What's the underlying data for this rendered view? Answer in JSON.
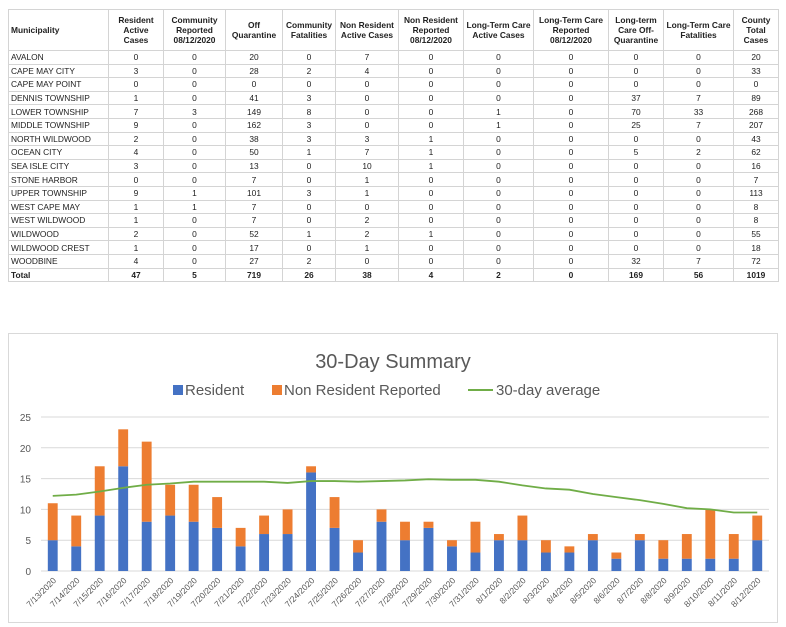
{
  "table": {
    "headers": [
      "Municipality",
      "Resident Active Cases",
      "Community Reported 08/12/2020",
      "Off Quarantine",
      "Community Fatalities",
      "Non Resident Active Cases",
      "Non Resident Reported 08/12/2020",
      "Long-Term Care Active Cases",
      "Long-Term Care Reported 08/12/2020",
      "Long-term Care Off-Quarantine",
      "Long-Term Care Fatalities",
      "County Total Cases"
    ],
    "rows": [
      [
        "AVALON",
        "0",
        "0",
        "20",
        "0",
        "7",
        "0",
        "0",
        "0",
        "0",
        "0",
        "20"
      ],
      [
        "CAPE MAY CITY",
        "3",
        "0",
        "28",
        "2",
        "4",
        "0",
        "0",
        "0",
        "0",
        "0",
        "33"
      ],
      [
        "CAPE MAY POINT",
        "0",
        "0",
        "0",
        "0",
        "0",
        "0",
        "0",
        "0",
        "0",
        "0",
        "0"
      ],
      [
        "DENNIS TOWNSHIP",
        "1",
        "0",
        "41",
        "3",
        "0",
        "0",
        "0",
        "0",
        "37",
        "7",
        "89"
      ],
      [
        "LOWER TOWNSHIP",
        "7",
        "3",
        "149",
        "8",
        "0",
        "0",
        "1",
        "0",
        "70",
        "33",
        "268"
      ],
      [
        "MIDDLE TOWNSHIP",
        "9",
        "0",
        "162",
        "3",
        "0",
        "0",
        "1",
        "0",
        "25",
        "7",
        "207"
      ],
      [
        "NORTH WILDWOOD",
        "2",
        "0",
        "38",
        "3",
        "3",
        "1",
        "0",
        "0",
        "0",
        "0",
        "43"
      ],
      [
        "OCEAN CITY",
        "4",
        "0",
        "50",
        "1",
        "7",
        "1",
        "0",
        "0",
        "5",
        "2",
        "62"
      ],
      [
        "SEA ISLE CITY",
        "3",
        "0",
        "13",
        "0",
        "10",
        "1",
        "0",
        "0",
        "0",
        "0",
        "16"
      ],
      [
        "STONE HARBOR",
        "0",
        "0",
        "7",
        "0",
        "1",
        "0",
        "0",
        "0",
        "0",
        "0",
        "7"
      ],
      [
        "UPPER TOWNSHIP",
        "9",
        "1",
        "101",
        "3",
        "1",
        "0",
        "0",
        "0",
        "0",
        "0",
        "113"
      ],
      [
        "WEST CAPE MAY",
        "1",
        "1",
        "7",
        "0",
        "0",
        "0",
        "0",
        "0",
        "0",
        "0",
        "8"
      ],
      [
        "WEST WILDWOOD",
        "1",
        "0",
        "7",
        "0",
        "2",
        "0",
        "0",
        "0",
        "0",
        "0",
        "8"
      ],
      [
        "WILDWOOD",
        "2",
        "0",
        "52",
        "1",
        "2",
        "1",
        "0",
        "0",
        "0",
        "0",
        "55"
      ],
      [
        "WILDWOOD CREST",
        "1",
        "0",
        "17",
        "0",
        "1",
        "0",
        "0",
        "0",
        "0",
        "0",
        "18"
      ],
      [
        "WOODBINE",
        "4",
        "0",
        "27",
        "2",
        "0",
        "0",
        "0",
        "0",
        "32",
        "7",
        "72"
      ]
    ],
    "total": [
      "Total",
      "47",
      "5",
      "719",
      "26",
      "38",
      "4",
      "2",
      "0",
      "169",
      "56",
      "1019"
    ]
  },
  "chart_data": {
    "type": "bar",
    "stacked": true,
    "title": "30-Day Summary",
    "legend_placement": "top",
    "grid": true,
    "ylim": [
      0,
      25
    ],
    "yticks": [
      0,
      5,
      10,
      15,
      20,
      25
    ],
    "categories": [
      "7/13/2020",
      "7/14/2020",
      "7/15/2020",
      "7/16/2020",
      "7/17/2020",
      "7/18/2020",
      "7/19/2020",
      "7/20/2020",
      "7/21/2020",
      "7/22/2020",
      "7/23/2020",
      "7/24/2020",
      "7/25/2020",
      "7/26/2020",
      "7/27/2020",
      "7/28/2020",
      "7/29/2020",
      "7/30/2020",
      "7/31/2020",
      "8/1/2020",
      "8/2/2020",
      "8/3/2020",
      "8/4/2020",
      "8/5/2020",
      "8/6/2020",
      "8/7/2020",
      "8/8/2020",
      "8/9/2020",
      "8/10/2020",
      "8/11/2020",
      "8/12/2020"
    ],
    "series": [
      {
        "name": "Resident",
        "type": "bar",
        "color": "#4472c4",
        "values": [
          5,
          4,
          9,
          17,
          8,
          9,
          8,
          7,
          4,
          6,
          6,
          16,
          7,
          3,
          8,
          5,
          7,
          4,
          3,
          5,
          5,
          3,
          3,
          5,
          2,
          5,
          2,
          2,
          2,
          2,
          5
        ]
      },
      {
        "name": "Non Resident Reported",
        "type": "bar",
        "color": "#ed7d31",
        "values": [
          6,
          5,
          8,
          6,
          13,
          5,
          6,
          5,
          3,
          3,
          4,
          1,
          5,
          2,
          2,
          3,
          1,
          1,
          5,
          1,
          4,
          2,
          1,
          1,
          1,
          1,
          3,
          4,
          8,
          4,
          4
        ]
      },
      {
        "name": "30-day average",
        "type": "line",
        "color": "#70ad47",
        "values": [
          12.2,
          12.4,
          12.9,
          13.5,
          14.0,
          14.2,
          14.5,
          14.5,
          14.5,
          14.5,
          14.3,
          14.6,
          14.6,
          14.5,
          14.6,
          14.7,
          14.9,
          14.8,
          14.8,
          14.5,
          13.9,
          13.4,
          13.2,
          12.5,
          12.0,
          11.5,
          10.9,
          10.2,
          10.0,
          9.5,
          9.5
        ]
      }
    ]
  }
}
